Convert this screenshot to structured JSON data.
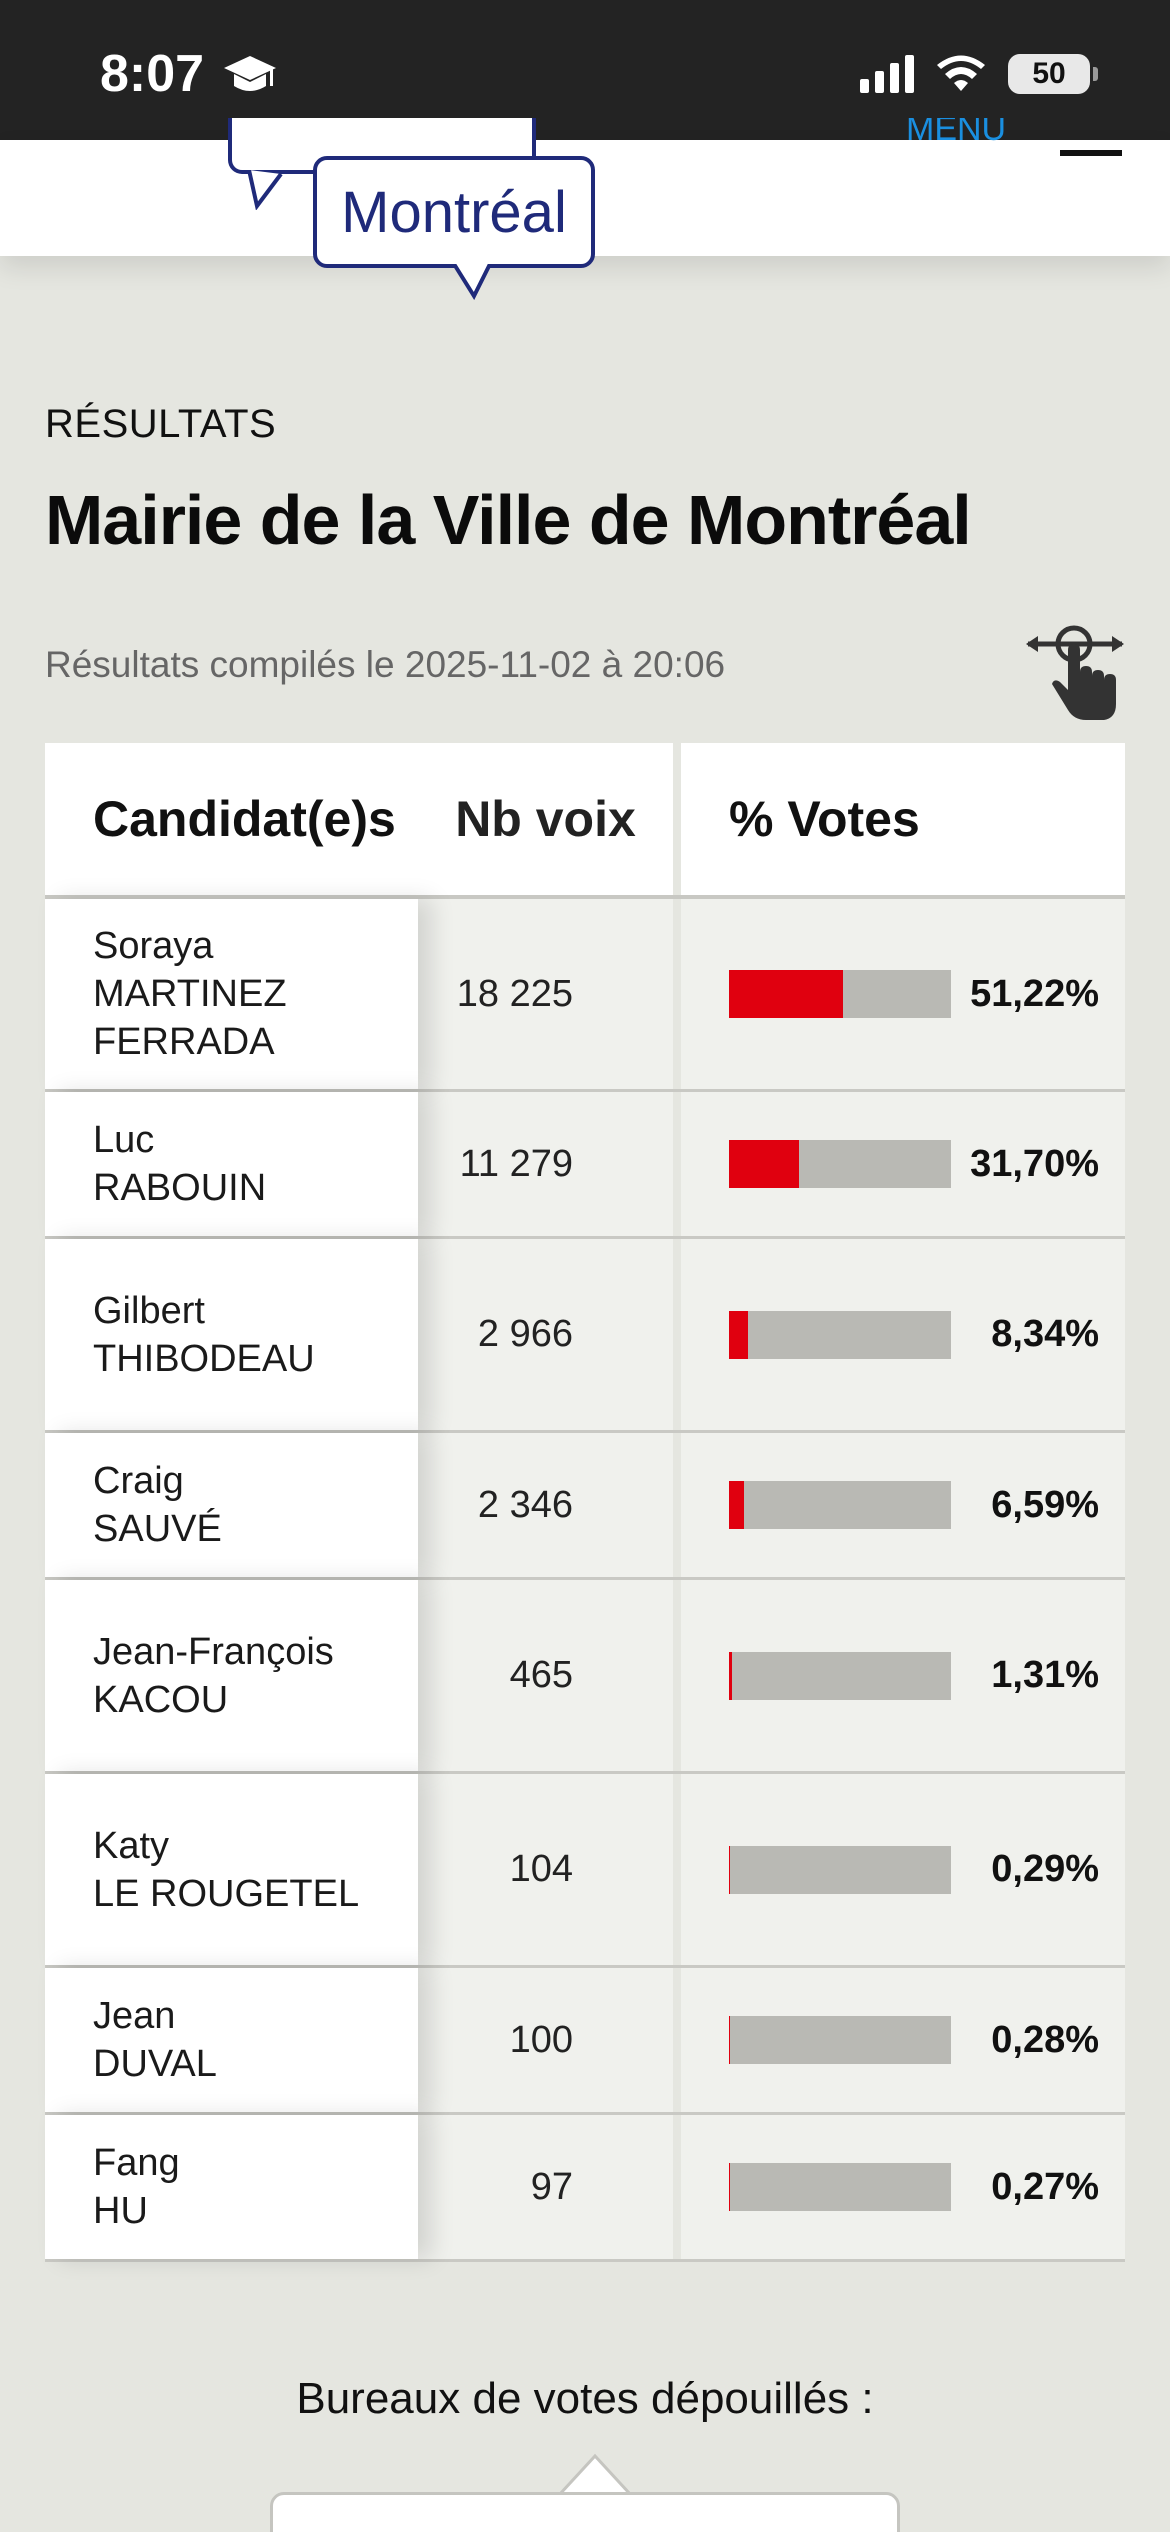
{
  "status_bar": {
    "time": "8:07",
    "battery": "50"
  },
  "header": {
    "logo_text": "Montréal",
    "menu_label": "MENU"
  },
  "page": {
    "kicker": "RÉSULTATS",
    "title": "Mairie de la Ville de Montréal",
    "compiled": "Résultats compilés le 2025-11-02 à 20:06"
  },
  "table": {
    "headers": {
      "candidates": "Candidat(e)s",
      "votes": "Nb voix",
      "percent": "% Votes"
    },
    "rows": [
      {
        "first": "Soraya",
        "last": "MARTINEZ",
        "last2": "FERRADA",
        "votes": "18 225",
        "percent": "51,22%",
        "share": 51.22
      },
      {
        "first": "Luc",
        "last": "RABOUIN",
        "last2": "",
        "votes": "11 279",
        "percent": "31,70%",
        "share": 31.7
      },
      {
        "first": "Gilbert",
        "last": "THIBODEAU",
        "last2": "",
        "votes": "2 966",
        "percent": "8,34%",
        "share": 8.34
      },
      {
        "first": "Craig",
        "last": "SAUVÉ",
        "last2": "",
        "votes": "2 346",
        "percent": "6,59%",
        "share": 6.59
      },
      {
        "first": "Jean-François",
        "last": "KACOU",
        "last2": "",
        "votes": "465",
        "percent": "1,31%",
        "share": 1.31
      },
      {
        "first": "Katy",
        "last": "LE ROUGETEL",
        "last2": "",
        "votes": "104",
        "percent": "0,29%",
        "share": 0.29
      },
      {
        "first": "Jean",
        "last": "DUVAL",
        "last2": "",
        "votes": "100",
        "percent": "0,28%",
        "share": 0.28
      },
      {
        "first": "Fang",
        "last": "HU",
        "last2": "",
        "votes": "97",
        "percent": "0,27%",
        "share": 0.27
      }
    ]
  },
  "footer": {
    "label": "Bureaux de votes dépouillés :"
  },
  "colors": {
    "accent_red": "#e0000f",
    "bar_gray": "#b9b9b4",
    "logo_blue": "#1f2a7a",
    "menu_blue": "#1a8fe0"
  },
  "icons": {
    "swipe": "swipe-hand-icon",
    "graduation": "graduation-cap-icon"
  }
}
